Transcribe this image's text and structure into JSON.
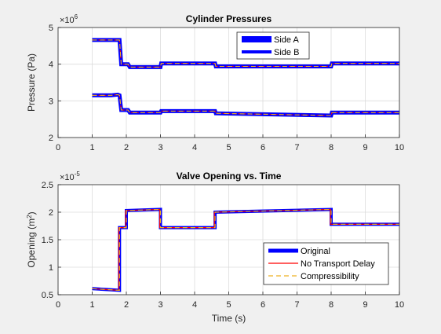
{
  "colors": {
    "figure_bg": "#f0f0f0",
    "axes_bg": "#ffffff",
    "grid": "#dcdcdc",
    "axis": "#262626",
    "original": "#0000ff",
    "no_transport_delay": "#ff0000",
    "compressibility": "#edb120"
  },
  "chart_data": [
    {
      "type": "line",
      "title": "Cylinder Pressures",
      "ylabel": "Pressure (Pa)",
      "xlabel": "",
      "exponent_label": "×10",
      "exponent_power": "6",
      "xlim": [
        0,
        10
      ],
      "ylim": [
        2,
        5
      ],
      "xticks": [
        "0",
        "1",
        "2",
        "3",
        "4",
        "5",
        "6",
        "7",
        "8",
        "9",
        "10"
      ],
      "yticks": [
        "2",
        "3",
        "4",
        "5"
      ],
      "grid": true,
      "legend_position": "top-center",
      "legend": [
        "Side A",
        "Side B"
      ],
      "series": [
        {
          "name": "Side A",
          "x": [
            1,
            1.8,
            1.85,
            2.05,
            2.1,
            3.0,
            3.02,
            4.6,
            4.62,
            8.0,
            8.02,
            10
          ],
          "y": [
            4.66,
            4.66,
            4.0,
            4.0,
            3.92,
            3.92,
            4.02,
            4.02,
            3.94,
            3.94,
            4.02,
            4.02
          ]
        },
        {
          "name": "Side B",
          "x": [
            1,
            1.55,
            1.75,
            1.8,
            1.85,
            2.05,
            2.1,
            3.0,
            3.02,
            4.6,
            4.62,
            8.0,
            8.02,
            10
          ],
          "y": [
            3.15,
            3.15,
            3.17,
            3.15,
            2.75,
            2.75,
            2.68,
            2.68,
            2.72,
            2.72,
            2.66,
            2.6,
            2.68,
            2.68
          ]
        }
      ]
    },
    {
      "type": "line",
      "title": "Valve Opening vs. Time",
      "ylabel": "Opening (m",
      "ylabel_sup": "2",
      "ylabel_end": ")",
      "xlabel": "Time (s)",
      "exponent_label": "×10",
      "exponent_power": "-5",
      "xlim": [
        0,
        10
      ],
      "ylim": [
        0.5,
        2.5
      ],
      "xticks": [
        "0",
        "1",
        "2",
        "3",
        "4",
        "5",
        "6",
        "7",
        "8",
        "9",
        "10"
      ],
      "yticks": [
        "0.5",
        "1",
        "1.5",
        "2",
        "2.5"
      ],
      "grid": true,
      "legend_position": "bottom-right",
      "legend": [
        "Original",
        "No Transport Delay",
        "Compressibility"
      ],
      "series": [
        {
          "name": "Original",
          "x": [
            1,
            1.8,
            1.8,
            1.9,
            1.9,
            2.0,
            2.0,
            3.0,
            3.0,
            4.6,
            4.6,
            8.0,
            8.0,
            10
          ],
          "y": [
            0.61,
            0.58,
            1.72,
            1.72,
            1.72,
            1.72,
            2.03,
            2.05,
            1.72,
            1.72,
            2.0,
            2.05,
            1.78,
            1.78
          ]
        },
        {
          "name": "No Transport Delay",
          "x": [
            1,
            1.78,
            1.78,
            1.88,
            1.88,
            1.98,
            1.98,
            2.98,
            2.98,
            4.58,
            4.58,
            7.98,
            7.98,
            10
          ],
          "y": [
            0.61,
            0.58,
            1.72,
            1.72,
            1.72,
            1.72,
            2.03,
            2.05,
            1.72,
            1.72,
            2.0,
            2.05,
            1.78,
            1.78
          ]
        },
        {
          "name": "Compressibility",
          "x": [
            1,
            1.8,
            1.8,
            1.9,
            1.9,
            2.0,
            2.0,
            3.0,
            3.0,
            4.6,
            4.6,
            8.0,
            8.0,
            10
          ],
          "y": [
            0.61,
            0.58,
            1.72,
            1.72,
            1.72,
            1.72,
            2.03,
            2.05,
            1.72,
            1.72,
            2.0,
            2.05,
            1.78,
            1.78
          ]
        }
      ]
    }
  ]
}
